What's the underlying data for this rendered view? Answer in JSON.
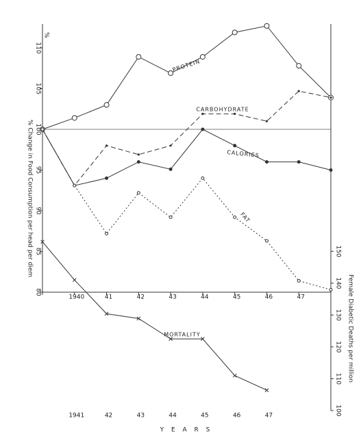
{
  "chart_data": [
    {
      "type": "line",
      "ylabel": "% Change in Food Consumption per head per diem",
      "y_unit": "%",
      "categories": [
        null,
        "1940",
        "41",
        "42",
        "43",
        "44",
        "45",
        "46",
        "47",
        null
      ],
      "ylim": [
        80,
        113
      ],
      "yticks": [
        80,
        85,
        90,
        95,
        100,
        105,
        110
      ],
      "hline": 100,
      "series": [
        {
          "name": "PROTEIN",
          "color": "#333333",
          "marker": "open",
          "dash": "solid",
          "values": [
            100,
            101.4,
            103,
            108.9,
            106.9,
            108.9,
            111.9,
            112.7,
            107.8,
            103.9
          ]
        },
        {
          "name": "CARBOHYDRATE",
          "color": "#333333",
          "marker": "dot",
          "dash": "dashed",
          "values": [
            100,
            93.1,
            98,
            96.9,
            98,
            101.9,
            101.9,
            101,
            104.7,
            103.9
          ]
        },
        {
          "name": "CALORIES",
          "color": "#333333",
          "marker": "filled",
          "dash": "solid",
          "values": [
            100,
            93.1,
            94,
            96,
            95.1,
            100,
            98,
            96,
            96,
            95
          ]
        },
        {
          "name": "FAT",
          "color": "#333333",
          "marker": "small-open",
          "dash": "dotted",
          "values": [
            100,
            93.1,
            87.2,
            92.2,
            89.2,
            94,
            89.2,
            86.3,
            81.4,
            80.3
          ]
        }
      ]
    },
    {
      "type": "line",
      "ylabel": "Female Diabetic Deaths per million",
      "xlabel": "Y E A R S",
      "categories": [
        null,
        "1941",
        "42",
        "43",
        "44",
        "45",
        "46",
        "47"
      ],
      "ylim": [
        100,
        155
      ],
      "yticks": [
        100,
        110,
        120,
        130,
        140,
        150
      ],
      "series": [
        {
          "name": "MORTALITY",
          "color": "#333333",
          "marker": "cross",
          "dash": "solid",
          "values": [
            153,
            141,
            130.4,
            128.9,
            122.5,
            122.5,
            111,
            106.4
          ]
        }
      ]
    }
  ]
}
